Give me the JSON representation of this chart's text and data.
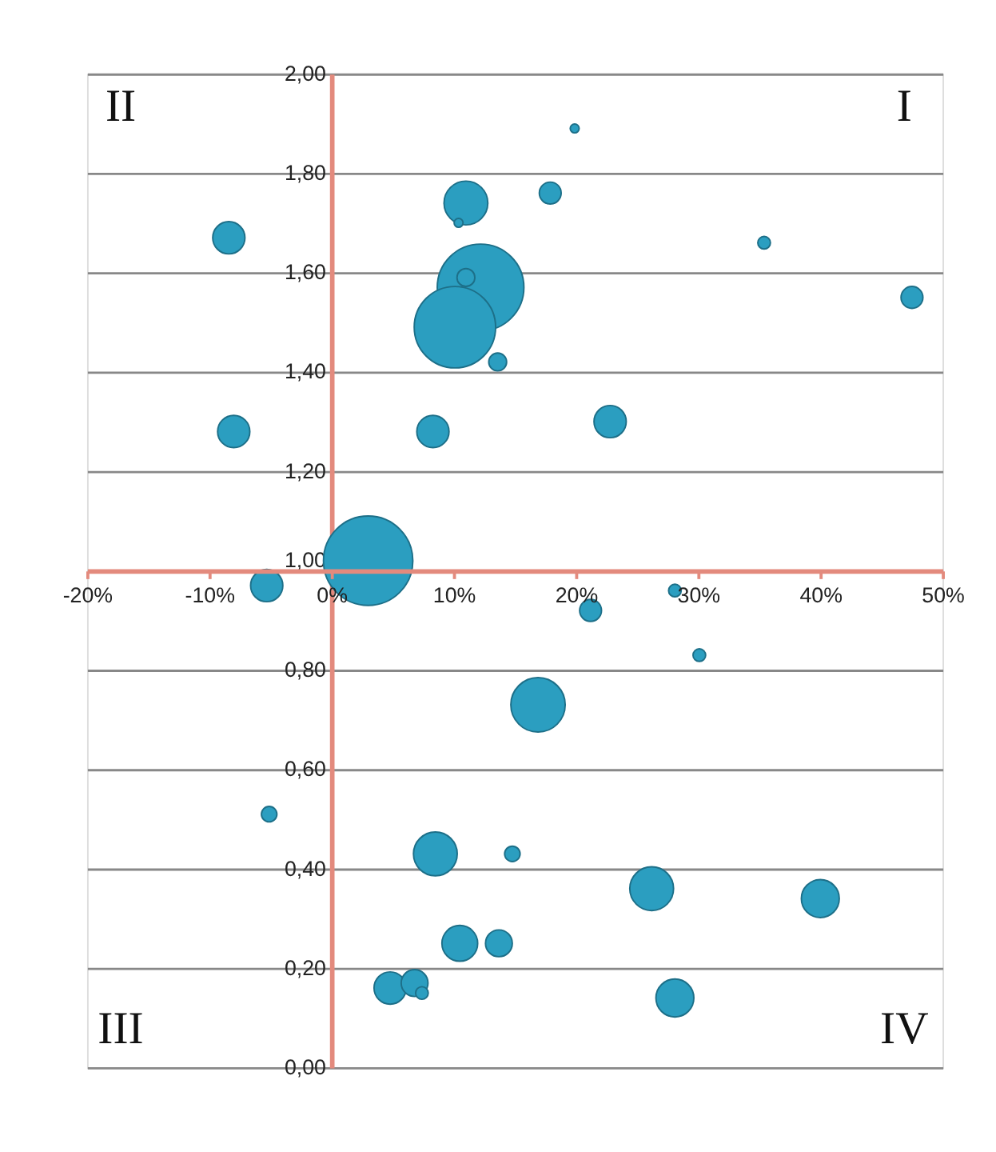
{
  "chart_data": {
    "type": "bubble",
    "x": [
      19.9,
      11.0,
      10.4,
      17.9,
      -8.4,
      35.4,
      47.5,
      12.2,
      11.0,
      10.1,
      13.6,
      -8.0,
      8.3,
      22.8,
      3.0,
      -5.3,
      21.2,
      28.1,
      30.1,
      16.9,
      -5.1,
      8.5,
      14.8,
      26.2,
      40.0,
      10.5,
      13.7,
      4.8,
      6.8,
      7.4,
      28.1
    ],
    "series": [
      {
        "color": "#2b9ec0",
        "values": [
          1.89,
          1.74,
          1.7,
          1.76,
          1.67,
          1.66,
          1.55,
          1.57,
          1.59,
          1.49,
          1.42,
          1.28,
          1.28,
          1.3,
          1.02,
          0.97,
          0.92,
          0.96,
          0.83,
          0.73,
          0.51,
          0.43,
          0.43,
          0.36,
          0.34,
          0.25,
          0.25,
          0.16,
          0.17,
          0.15,
          0.14
        ],
        "sizes": [
          0.01,
          0.24,
          0.01,
          0.06,
          0.13,
          0.02,
          0.06,
          0.94,
          0.04,
          0.83,
          0.04,
          0.13,
          0.13,
          0.13,
          1.0,
          0.13,
          0.06,
          0.02,
          0.02,
          0.37,
          0.03,
          0.24,
          0.03,
          0.24,
          0.18,
          0.16,
          0.09,
          0.13,
          0.09,
          0.02,
          0.18
        ]
      }
    ],
    "xlim": [
      -20,
      50
    ],
    "ylim": [
      0,
      2
    ],
    "xticks": [
      {
        "value": -20,
        "label": "-20%"
      },
      {
        "value": -10,
        "label": "-10%"
      },
      {
        "value": 0,
        "label": "0%"
      },
      {
        "value": 10,
        "label": "10%"
      },
      {
        "value": 20,
        "label": "20%"
      },
      {
        "value": 30,
        "label": "30%"
      },
      {
        "value": 40,
        "label": "40%"
      },
      {
        "value": 50,
        "label": "50%"
      }
    ],
    "yticks": [
      {
        "value": 0,
        "label": "0,00"
      },
      {
        "value": 0.2,
        "label": "0,20"
      },
      {
        "value": 0.4,
        "label": "0,40"
      },
      {
        "value": 0.6,
        "label": "0,60"
      },
      {
        "value": 0.8,
        "label": "0,80"
      },
      {
        "value": 1,
        "label": "1,00"
      },
      {
        "value": 1.2,
        "label": "1,20"
      },
      {
        "value": 1.4,
        "label": "1,40"
      },
      {
        "value": 1.6,
        "label": "1,60"
      },
      {
        "value": 1.8,
        "label": "1,80"
      },
      {
        "value": 2,
        "label": "2,00"
      }
    ],
    "annotations": [
      "I",
      "II",
      "III",
      "IV"
    ],
    "grid": "y"
  }
}
